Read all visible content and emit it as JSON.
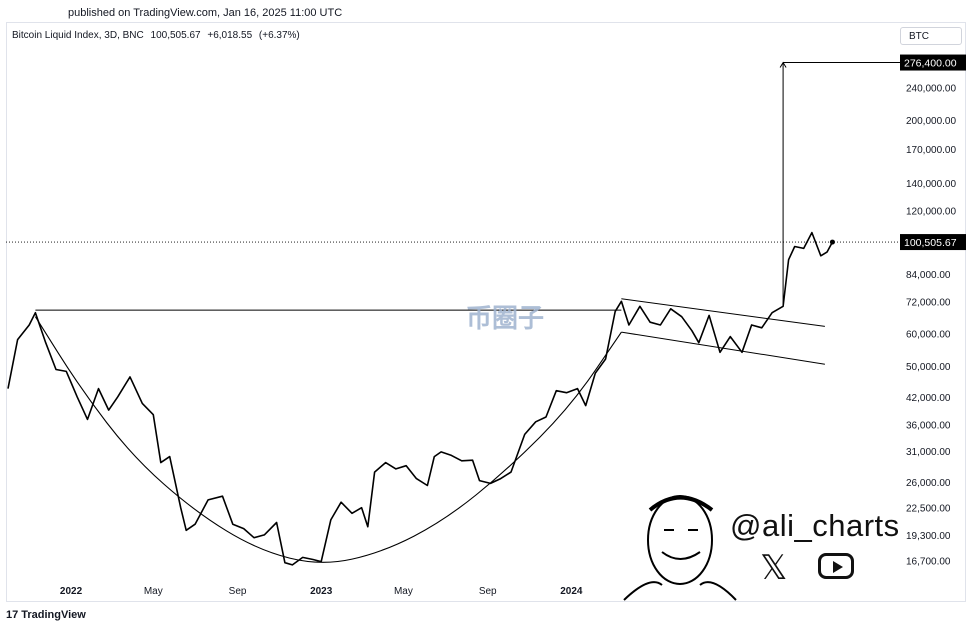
{
  "header": {
    "published": "published on TradingView.com, Jan 16, 2025 11:00 UTC",
    "symbol": "Bitcoin Liquid Index, 3D, BNC",
    "last": "100,505.67",
    "change": "+6,018.55",
    "change_pct": "(+6.37%)",
    "badge": "BTC"
  },
  "footer": {
    "logo_mark": "17",
    "logo_text": "TradingView"
  },
  "author": {
    "handle": "@ali_charts",
    "x_icon": "x-logo-icon",
    "youtube_icon": "youtube-icon"
  },
  "watermark": "币圈子",
  "colors": {
    "price_line": "#000000",
    "target_label_bg": "#000000",
    "dotted_line": "#000000"
  },
  "chart_data": {
    "type": "line",
    "title": "Bitcoin Liquid Index, 3D, BNC",
    "y_scale": "log",
    "ylim": [
      14800,
      300000
    ],
    "xlim": [
      "2021-10-01",
      "2025-04-10"
    ],
    "y_ticks": [
      "240,000.00",
      "200,000.00",
      "170,000.00",
      "140,000.00",
      "120,000.00",
      "84,000.00",
      "72,000.00",
      "60,000.00",
      "50,000.00",
      "42,000.00",
      "36,000.00",
      "31,000.00",
      "26,000.00",
      "22,500.00",
      "19,300.00",
      "16,700.00"
    ],
    "y_tick_values": [
      240000,
      200000,
      170000,
      140000,
      120000,
      84000,
      72000,
      60000,
      50000,
      42000,
      36000,
      31000,
      26000,
      22500,
      19300,
      16700
    ],
    "x_ticks": [
      {
        "label": "2022",
        "date": "2022-01-01",
        "bold": true
      },
      {
        "label": "May",
        "date": "2022-05-01",
        "bold": false
      },
      {
        "label": "Sep",
        "date": "2022-09-01",
        "bold": false
      },
      {
        "label": "2023",
        "date": "2023-01-01",
        "bold": true
      },
      {
        "label": "May",
        "date": "2023-05-01",
        "bold": false
      },
      {
        "label": "Sep",
        "date": "2023-09-01",
        "bold": false
      },
      {
        "label": "2024",
        "date": "2024-01-01",
        "bold": true
      }
    ],
    "current_price_label": "100,505.67",
    "current_price": 100505.67,
    "target_label": "276,400.00",
    "target_price": 276400,
    "series": [
      {
        "x": [
          "2021-10-01",
          "2021-10-15",
          "2021-11-01",
          "2021-11-10",
          "2021-11-25",
          "2021-12-10",
          "2021-12-25",
          "2022-01-10",
          "2022-01-25",
          "2022-02-10",
          "2022-02-25",
          "2022-03-10",
          "2022-03-28",
          "2022-04-15",
          "2022-05-01",
          "2022-05-12",
          "2022-05-25",
          "2022-06-10",
          "2022-06-18",
          "2022-07-01",
          "2022-07-20",
          "2022-08-10",
          "2022-08-25",
          "2022-09-10",
          "2022-09-25",
          "2022-10-10",
          "2022-10-28",
          "2022-11-09",
          "2022-11-20",
          "2022-12-05",
          "2022-12-20",
          "2023-01-01",
          "2023-01-15",
          "2023-01-30",
          "2023-02-15",
          "2023-03-01",
          "2023-03-10",
          "2023-03-20",
          "2023-04-05",
          "2023-04-20",
          "2023-05-05",
          "2023-05-20",
          "2023-06-05",
          "2023-06-15",
          "2023-06-25",
          "2023-07-10",
          "2023-07-25",
          "2023-08-10",
          "2023-08-20",
          "2023-09-05",
          "2023-09-20",
          "2023-10-05",
          "2023-10-25",
          "2023-11-10",
          "2023-11-25",
          "2023-12-10",
          "2023-12-25",
          "2024-01-10",
          "2024-01-22",
          "2024-02-05",
          "2024-02-20",
          "2024-03-05",
          "2024-03-14",
          "2024-03-25",
          "2024-04-10",
          "2024-04-25",
          "2024-05-10",
          "2024-05-25",
          "2024-06-10",
          "2024-06-25",
          "2024-07-05",
          "2024-07-20",
          "2024-08-05",
          "2024-08-20",
          "2024-09-06",
          "2024-09-20",
          "2024-10-05",
          "2024-10-20",
          "2024-11-05",
          "2024-11-13",
          "2024-11-22",
          "2024-12-05",
          "2024-12-17",
          "2024-12-30",
          "2025-01-08",
          "2025-01-16"
        ],
        "y": [
          44000,
          58000,
          63000,
          67500,
          57000,
          49000,
          48500,
          42000,
          37000,
          44000,
          39000,
          42000,
          47000,
          40500,
          38000,
          29000,
          30000,
          22500,
          19800,
          20500,
          23500,
          24000,
          20500,
          20000,
          19000,
          19300,
          20700,
          16500,
          16300,
          17000,
          16800,
          16600,
          21000,
          23200,
          21800,
          22500,
          20200,
          27500,
          29000,
          28000,
          28500,
          26500,
          25500,
          30000,
          30800,
          30200,
          29300,
          29400,
          26200,
          25800,
          26500,
          27500,
          34000,
          36500,
          37500,
          43500,
          43000,
          44000,
          40000,
          48000,
          52000,
          68000,
          72000,
          63000,
          70000,
          64000,
          63000,
          69000,
          66000,
          61000,
          57000,
          66500,
          54000,
          59000,
          54000,
          63000,
          62000,
          67500,
          70000,
          91000,
          98000,
          97000,
          106000,
          93000,
          95000,
          100505.67
        ]
      }
    ],
    "annotations": {
      "neckline": {
        "from": "2021-11-10",
        "to": "2024-03-14",
        "value": 68500
      },
      "channel_upper": [
        {
          "date": "2024-03-14",
          "value": 73000
        },
        {
          "date": "2025-01-05",
          "value": 62500
        }
      ],
      "channel_lower": [
        {
          "date": "2024-03-14",
          "value": 60500
        },
        {
          "date": "2025-01-05",
          "value": 50500
        }
      ],
      "target_arrow": {
        "date": "2024-11-05",
        "from": 70000,
        "to": 276400
      },
      "cup_arc": [
        {
          "date": "2021-11-10",
          "value": 66000
        },
        {
          "date": "2022-01-15",
          "value": 44000
        },
        {
          "date": "2022-04-01",
          "value": 30000
        },
        {
          "date": "2022-07-01",
          "value": 22000
        },
        {
          "date": "2022-10-01",
          "value": 17700
        },
        {
          "date": "2023-01-01",
          "value": 16200
        },
        {
          "date": "2023-04-01",
          "value": 17500
        },
        {
          "date": "2023-07-01",
          "value": 21000
        },
        {
          "date": "2023-10-01",
          "value": 28000
        },
        {
          "date": "2024-01-01",
          "value": 40000
        },
        {
          "date": "2024-03-14",
          "value": 60500
        }
      ]
    }
  }
}
